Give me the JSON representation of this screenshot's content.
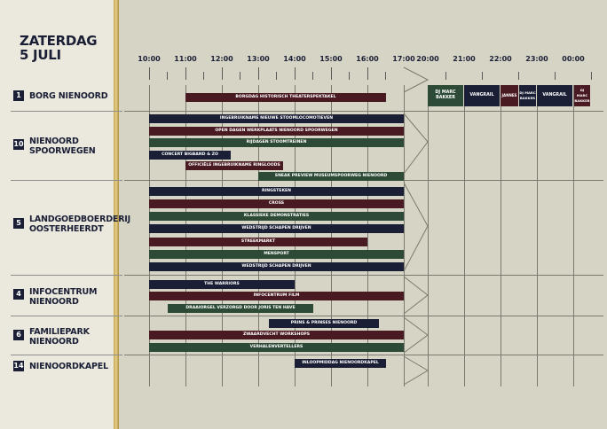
{
  "header": {
    "day": "ZATERDAG",
    "date": "5 JULI"
  },
  "times": [
    "10:00",
    "11:00",
    "12:00",
    "13:00",
    "14:00",
    "15:00",
    "16:00",
    "17:00",
    "20:00",
    "21:00",
    "22:00",
    "23:00",
    "00:00"
  ],
  "locations": [
    {
      "num": "1",
      "name": "BORG NIENOORD"
    },
    {
      "num": "10",
      "name": "NIENOORD SPOORWEGEN"
    },
    {
      "num": "5",
      "name": "LANDGOEDBOERDERIJ OOSTERHEERDT"
    },
    {
      "num": "4",
      "name": "INFOCENTRUM NIENOORD"
    },
    {
      "num": "6",
      "name": "FAMILIEPARK NIENOORD"
    },
    {
      "num": "14",
      "name": "NIENOORDKAPEL"
    }
  ],
  "events": [
    "BORGDAG HISTORISCH THEATERSPEKTAKEL",
    "INGEBRUIKNAME NIEUWE STOOMLOCOMOTIEVEN",
    "OPEN DAGEN WERKPLAATS NIENOORD SPOORWEGEN",
    "RIJDAGEN STOOMTREINEN",
    "CONCERT BIGBAND & ZO",
    "OFFICIËLE INGEBRUIKNAME RINGLOODS",
    "SNEAK PREVIEW MUSEUMSPOORWEG NIENOORD",
    "RINGSTEKEN",
    "CROSS",
    "KLASSIEKE DEMONSTRATIES",
    "WEDSTRIJD SCHAPEN DRIJVEN",
    "STREEKMARKT",
    "MENSPORT",
    "WEDSTRIJD SCHAPEN DRIJVEN",
    "THE WARRIORS",
    "INFOCENTRUM FILM",
    "DRAAIORGEL VERZORGD DOOR JORIS TEN HAVE",
    "PRINS & PRINSES NIENOORD",
    "ZWAARDVECHT WORKSHOPS",
    "VERHALENVERTELLERS",
    "INLOOPMIDDAG NIENOORDKAPEL"
  ],
  "evening": [
    "DJ MARC BAKKER",
    "VANGRAIL",
    "JANNES",
    "DJ MARC BAKKER",
    "VANGRAIL",
    "DJ MARC BAKKER"
  ]
}
